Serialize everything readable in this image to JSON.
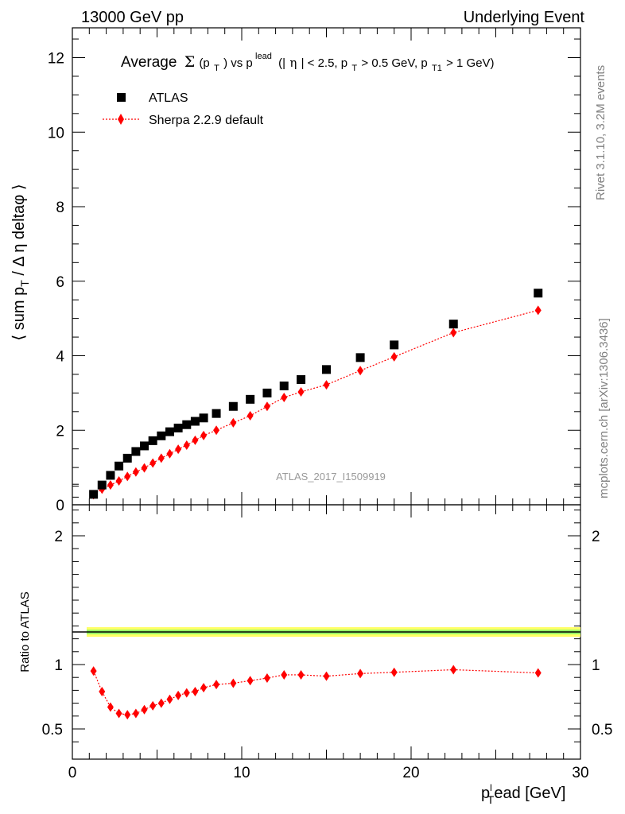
{
  "header": {
    "left": "13000 GeV pp",
    "right": "Underlying Event"
  },
  "sidebar": {
    "rivet": "Rivet 3.1.10,  3.2M events",
    "mcplots": "mcplots.cern.ch [arXiv:1306.3436]"
  },
  "main_title": {
    "part1": "Average",
    "part2": "(p",
    "part3": ")  vs  p",
    "part4": "lead",
    "part5": "(|",
    "part6": "| < 2.5, p",
    "part7": " > 0.5 GeV, p",
    "part8": "T1",
    "part9": " > 1 GeV)",
    "sub_T": "T"
  },
  "watermark": "ATLAS_2017_I1509919",
  "legend": {
    "data_label": "ATLAS",
    "mc_label": "Sherpa 2.2.9 default"
  },
  "y_title": {
    "pre": "⟨ sum p",
    "sub": "T",
    "post": " / Δ η deltaφ ⟩"
  },
  "ratio_ylabel": "Ratio to ATLAS",
  "x_title": {
    "p": "p",
    "sub": "T",
    "sup": "l",
    "rest": "ead [GeV]"
  },
  "colors": {
    "data": "#000000",
    "mc": "#ff0000",
    "band_outer": "#ffff66",
    "band_inner": "#99ff66"
  },
  "chart_data": [
    {
      "type": "scatter",
      "panel": "main",
      "xlim": [
        0,
        30
      ],
      "ylim": [
        0,
        12.8
      ],
      "x_ticks": [
        0,
        10,
        20,
        30
      ],
      "y_ticks": [
        0,
        2,
        4,
        6,
        8,
        10,
        12
      ],
      "x": [
        1.25,
        1.75,
        2.25,
        2.75,
        3.25,
        3.75,
        4.25,
        4.75,
        5.25,
        5.75,
        6.25,
        6.75,
        7.25,
        7.75,
        8.5,
        9.5,
        10.5,
        11.5,
        12.5,
        13.5,
        15,
        17,
        19,
        22.5,
        27.5
      ],
      "series": [
        {
          "name": "ATLAS",
          "marker": "square",
          "values": [
            0.28,
            0.53,
            0.79,
            1.04,
            1.25,
            1.43,
            1.58,
            1.72,
            1.85,
            1.96,
            2.06,
            2.15,
            2.24,
            2.33,
            2.45,
            2.64,
            2.83,
            3.0,
            3.19,
            3.36,
            3.63,
            3.95,
            4.29,
            4.85,
            5.68
          ]
        },
        {
          "name": "Sherpa 2.2.9 default",
          "marker": "diamond",
          "line": "dotted",
          "values": [
            0.27,
            0.42,
            0.53,
            0.64,
            0.76,
            0.88,
            0.99,
            1.12,
            1.25,
            1.37,
            1.49,
            1.6,
            1.73,
            1.86,
            2.0,
            2.2,
            2.39,
            2.64,
            2.88,
            3.03,
            3.22,
            3.6,
            3.97,
            4.62,
            5.22
          ]
        }
      ]
    },
    {
      "type": "scatter",
      "panel": "ratio",
      "ylabel": "Ratio to ATLAS",
      "xlabel": "p_T^lead [GeV]",
      "xlim": [
        0,
        30
      ],
      "ylim": [
        0.35,
        2.5
      ],
      "y_ticks": [
        0.5,
        1,
        2
      ],
      "x_ticks": [
        0,
        10,
        20,
        30
      ],
      "x": [
        1.25,
        1.75,
        2.25,
        2.75,
        3.25,
        3.75,
        4.25,
        4.75,
        5.25,
        5.75,
        6.25,
        6.75,
        7.25,
        7.75,
        8.5,
        9.5,
        10.5,
        11.5,
        12.5,
        13.5,
        15,
        17,
        19,
        22.5,
        27.5
      ],
      "series": [
        {
          "name": "Sherpa 2.2.9 default",
          "marker": "diamond",
          "line": "dotted",
          "values": [
            0.95,
            0.79,
            0.67,
            0.62,
            0.61,
            0.62,
            0.65,
            0.68,
            0.7,
            0.73,
            0.76,
            0.78,
            0.79,
            0.82,
            0.845,
            0.855,
            0.875,
            0.895,
            0.92,
            0.92,
            0.91,
            0.93,
            0.94,
            0.96,
            0.935
          ]
        }
      ]
    }
  ]
}
